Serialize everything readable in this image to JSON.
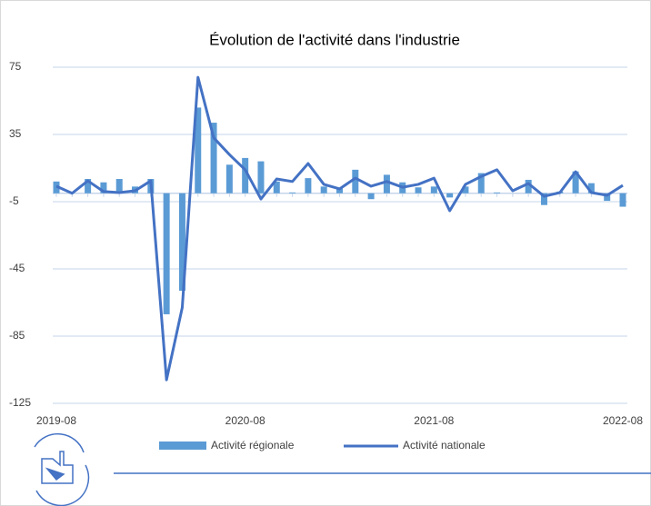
{
  "chart_data": {
    "type": "bar",
    "title": "Évolution de l'activité dans l'industrie",
    "categories": [
      "2019-08",
      null,
      null,
      null,
      null,
      null,
      null,
      null,
      null,
      null,
      null,
      null,
      "2020-08",
      null,
      null,
      null,
      null,
      null,
      null,
      null,
      null,
      null,
      null,
      null,
      "2021-08",
      null,
      null,
      null,
      null,
      null,
      null,
      null,
      null,
      null,
      null,
      null,
      "2022-08"
    ],
    "series": [
      {
        "name": "Activité régionale",
        "type": "bar",
        "color": "#5b9bd5",
        "values": [
          7,
          0,
          8.5,
          6.5,
          8.5,
          4,
          8.5,
          -72,
          -58,
          51,
          42,
          17,
          21,
          19,
          7,
          0.5,
          9,
          4,
          3,
          14,
          -3.5,
          11,
          6.5,
          3.5,
          4,
          -2.5,
          4,
          12,
          0.5,
          0,
          8,
          -7,
          1,
          13,
          6,
          -4.5,
          -8
        ]
      },
      {
        "name": "Activité nationale",
        "type": "line",
        "color": "#4472c4",
        "values": [
          4.2,
          0,
          7.4,
          1,
          0.4,
          1.5,
          7.4,
          -111,
          -68,
          69,
          33,
          23,
          14,
          -3.4,
          8.5,
          7,
          17.7,
          5.3,
          2.6,
          9,
          4.2,
          7,
          3.6,
          5.3,
          9,
          -10.4,
          5.3,
          10,
          14,
          1.5,
          5.8,
          -1.8,
          0.4,
          12.8,
          0.4,
          -1.2,
          4.7
        ]
      }
    ],
    "ylim": [
      -125,
      75
    ],
    "yticks": [
      -125,
      -85,
      -45,
      -5,
      35,
      75
    ],
    "grid": true
  }
}
